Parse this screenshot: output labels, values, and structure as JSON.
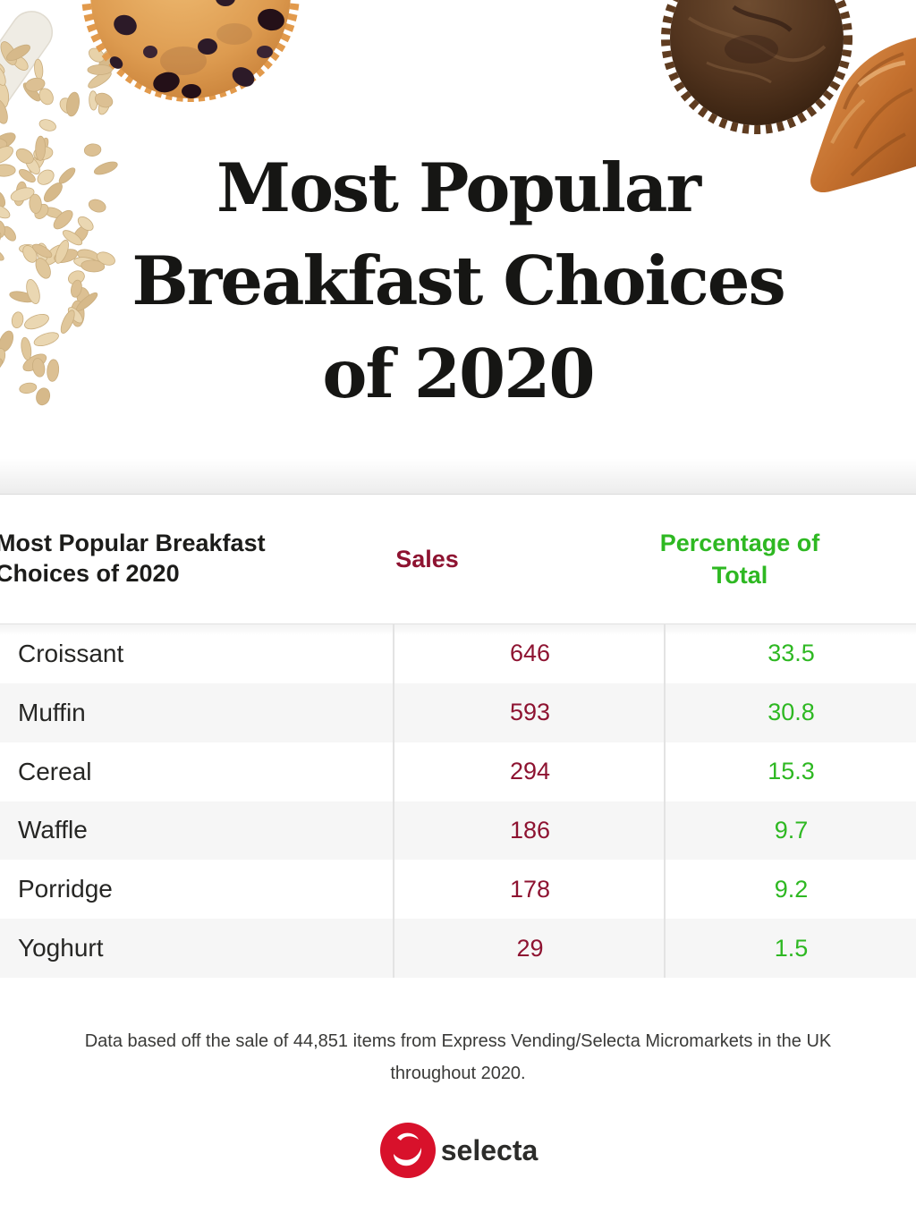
{
  "hero": {
    "title_lines": [
      "Most Popular",
      "Breakfast Choices",
      "of 2020"
    ]
  },
  "decor": {
    "images": [
      "utensil-image",
      "oats-image",
      "blueberry-muffin-image",
      "chocolate-muffin-image",
      "croissant-image"
    ]
  },
  "table": {
    "header": {
      "title": "Most Popular Breakfast Choices of 2020",
      "sales_label": "Sales",
      "percentage_label": "Percentage of Total"
    },
    "rows": [
      {
        "item": "Croissant",
        "sales": "646",
        "percentage": "33.5"
      },
      {
        "item": "Muffin",
        "sales": "593",
        "percentage": "30.8"
      },
      {
        "item": "Cereal",
        "sales": "294",
        "percentage": "15.3"
      },
      {
        "item": "Waffle",
        "sales": "186",
        "percentage": "9.7"
      },
      {
        "item": "Porridge",
        "sales": "178",
        "percentage": "9.2"
      },
      {
        "item": "Yoghurt",
        "sales": "29",
        "percentage": "1.5"
      }
    ]
  },
  "chart_data": {
    "type": "table",
    "title": "Most Popular Breakfast Choices of 2020",
    "columns": [
      "Most Popular Breakfast Choices of 2020",
      "Sales",
      "Percentage of Total"
    ],
    "categories": [
      "Croissant",
      "Muffin",
      "Cereal",
      "Waffle",
      "Porridge",
      "Yoghurt"
    ],
    "series": [
      {
        "name": "Sales",
        "values": [
          646,
          593,
          294,
          186,
          178,
          29
        ]
      },
      {
        "name": "Percentage of Total",
        "values": [
          33.5,
          30.8,
          15.3,
          9.7,
          9.2,
          1.5
        ]
      }
    ],
    "footnote": "Data based off the sale of 44,851 items from Express Vending/Selecta Micromarkets in the UK throughout 2020."
  },
  "footnote_lines": [
    "Data based off the sale of 44,851 items from Express Vending/Selecta Micromarkets in the UK",
    "throughout 2020."
  ],
  "logo": {
    "text": "selecta"
  },
  "colors": {
    "sales": "#8e1331",
    "percentage": "#2eb822",
    "brand_red": "#d8112b"
  }
}
